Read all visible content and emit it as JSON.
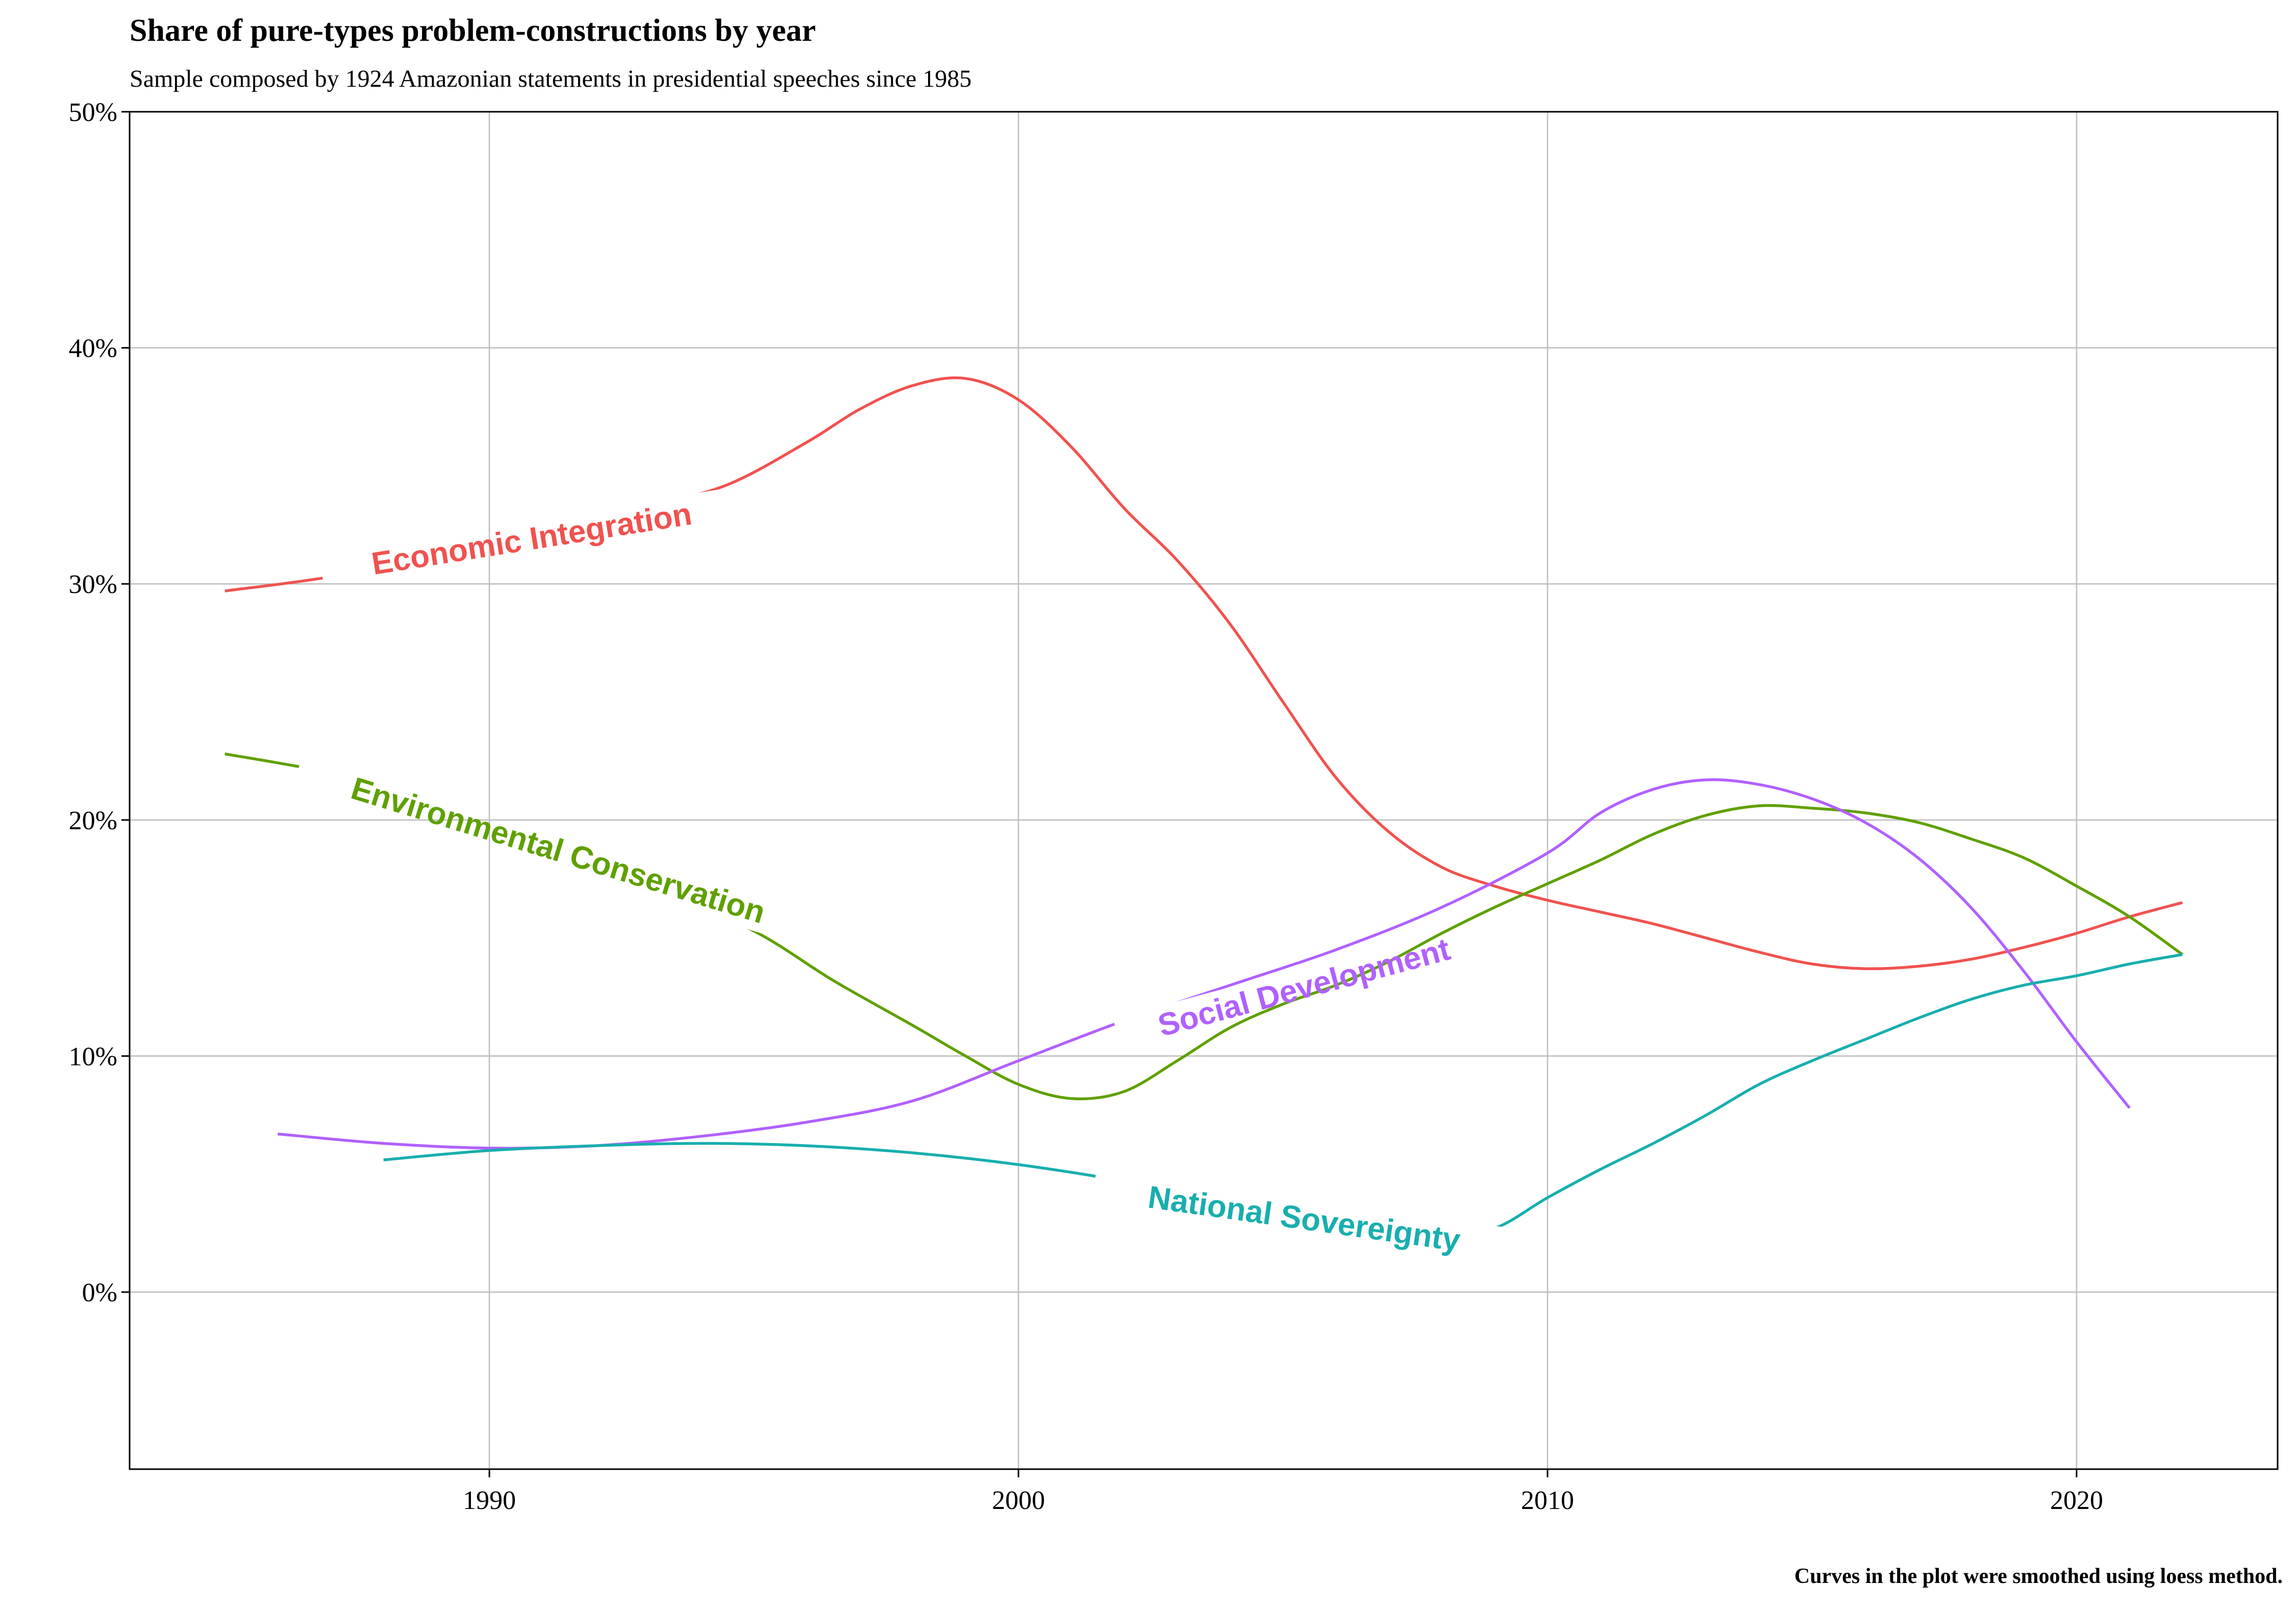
{
  "chart_data": {
    "type": "line",
    "title": "Share of pure-types problem-constructions by year",
    "subtitle": "Sample composed by 1924 Amazonian statements in presidential speeches since 1985",
    "caption": "Curves in the plot were smoothed using loess method.",
    "xlim": [
      1983.2,
      2023.8
    ],
    "ylim": [
      -7.5,
      50
    ],
    "x_ticks": [
      1990,
      2000,
      2010,
      2020
    ],
    "y_ticks": [
      0,
      10,
      20,
      30,
      40,
      50
    ],
    "y_tick_labels": [
      "0%",
      "10%",
      "20%",
      "30%",
      "40%",
      "50%"
    ],
    "grid": true,
    "legend": "none (direct labels on curves)",
    "series": [
      {
        "name": "Economic Integration",
        "color": "#F0524F",
        "points": [
          [
            1985,
            29.7
          ],
          [
            1987,
            30.3
          ],
          [
            1989,
            31.2
          ],
          [
            1991,
            32.2
          ],
          [
            1993,
            33.3
          ],
          [
            1994.5,
            34.2
          ],
          [
            1996,
            36.0
          ],
          [
            1997,
            37.4
          ],
          [
            1998,
            38.4
          ],
          [
            1999,
            38.7
          ],
          [
            2000,
            37.8
          ],
          [
            2001,
            35.8
          ],
          [
            2002,
            33.2
          ],
          [
            2003,
            31.0
          ],
          [
            2004,
            28.3
          ],
          [
            2005,
            25.0
          ],
          [
            2006,
            21.8
          ],
          [
            2007,
            19.5
          ],
          [
            2008,
            18.0
          ],
          [
            2009,
            17.2
          ],
          [
            2010,
            16.6
          ],
          [
            2011,
            16.1
          ],
          [
            2012,
            15.6
          ],
          [
            2013,
            15.0
          ],
          [
            2014,
            14.4
          ],
          [
            2015,
            13.9
          ],
          [
            2016,
            13.7
          ],
          [
            2017,
            13.8
          ],
          [
            2018,
            14.1
          ],
          [
            2019,
            14.6
          ],
          [
            2020,
            15.2
          ],
          [
            2021,
            15.9
          ],
          [
            2022,
            16.5
          ]
        ]
      },
      {
        "name": "Environmental Conservation",
        "color": "#5FA000",
        "points": [
          [
            1985,
            22.8
          ],
          [
            1987,
            22.0
          ],
          [
            1989,
            20.9
          ],
          [
            1991,
            19.3
          ],
          [
            1993,
            17.3
          ],
          [
            1995,
            15.3
          ],
          [
            1996.5,
            13.2
          ],
          [
            1998,
            11.3
          ],
          [
            1999,
            10.0
          ],
          [
            2000,
            8.8
          ],
          [
            2001,
            8.2
          ],
          [
            2002,
            8.5
          ],
          [
            2003,
            9.8
          ],
          [
            2004,
            11.2
          ],
          [
            2005,
            12.2
          ],
          [
            2006,
            13.0
          ],
          [
            2007,
            14.0
          ],
          [
            2008,
            15.2
          ],
          [
            2009,
            16.3
          ],
          [
            2010,
            17.3
          ],
          [
            2011,
            18.3
          ],
          [
            2012,
            19.4
          ],
          [
            2013,
            20.2
          ],
          [
            2014,
            20.6
          ],
          [
            2015,
            20.5
          ],
          [
            2016,
            20.3
          ],
          [
            2017,
            19.9
          ],
          [
            2018,
            19.2
          ],
          [
            2019,
            18.4
          ],
          [
            2020,
            17.2
          ],
          [
            2021,
            15.9
          ],
          [
            2022,
            14.3
          ]
        ]
      },
      {
        "name": "Social Development",
        "color": "#B061FF",
        "points": [
          [
            1986,
            6.7
          ],
          [
            1988,
            6.3
          ],
          [
            1990,
            6.1
          ],
          [
            1992,
            6.2
          ],
          [
            1994,
            6.6
          ],
          [
            1996,
            7.2
          ],
          [
            1998,
            8.1
          ],
          [
            2000,
            9.8
          ],
          [
            2002,
            11.5
          ],
          [
            2004,
            13.0
          ],
          [
            2006,
            14.5
          ],
          [
            2008,
            16.3
          ],
          [
            2010,
            18.6
          ],
          [
            2011,
            20.3
          ],
          [
            2012,
            21.3
          ],
          [
            2013,
            21.7
          ],
          [
            2014,
            21.5
          ],
          [
            2015,
            20.9
          ],
          [
            2016,
            19.9
          ],
          [
            2017,
            18.4
          ],
          [
            2018,
            16.3
          ],
          [
            2019,
            13.6
          ],
          [
            2020,
            10.6
          ],
          [
            2021,
            7.8
          ]
        ]
      },
      {
        "name": "National Sovereignty",
        "color": "#19AEAE",
        "points": [
          [
            1988,
            5.6
          ],
          [
            1990,
            6.0
          ],
          [
            1992,
            6.2
          ],
          [
            1994,
            6.3
          ],
          [
            1996,
            6.2
          ],
          [
            1998,
            5.9
          ],
          [
            2000,
            5.4
          ],
          [
            2002,
            4.7
          ],
          [
            2004,
            3.8
          ],
          [
            2006,
            2.8
          ],
          [
            2008,
            2.4
          ],
          [
            2009,
            2.7
          ],
          [
            2010,
            4.0
          ],
          [
            2011,
            5.2
          ],
          [
            2012,
            6.3
          ],
          [
            2013,
            7.5
          ],
          [
            2014,
            8.8
          ],
          [
            2015,
            9.8
          ],
          [
            2016,
            10.7
          ],
          [
            2017,
            11.6
          ],
          [
            2018,
            12.4
          ],
          [
            2019,
            13.0
          ],
          [
            2020,
            13.4
          ],
          [
            2021,
            13.9
          ],
          [
            2022,
            14.3
          ]
        ]
      }
    ],
    "labels": [
      {
        "text": "Economic Integration",
        "series": 0,
        "x": 1990.8,
        "y": 31.9,
        "angle": -9
      },
      {
        "text": "Environmental Conservation",
        "series": 1,
        "x": 1991.3,
        "y": 18.7,
        "angle": 17
      },
      {
        "text": "Social Development",
        "series": 2,
        "x": 2005.4,
        "y": 12.9,
        "angle": -15
      },
      {
        "text": "National Sovereignty",
        "series": 3,
        "x": 2005.4,
        "y": 3.1,
        "angle": 8
      }
    ]
  }
}
